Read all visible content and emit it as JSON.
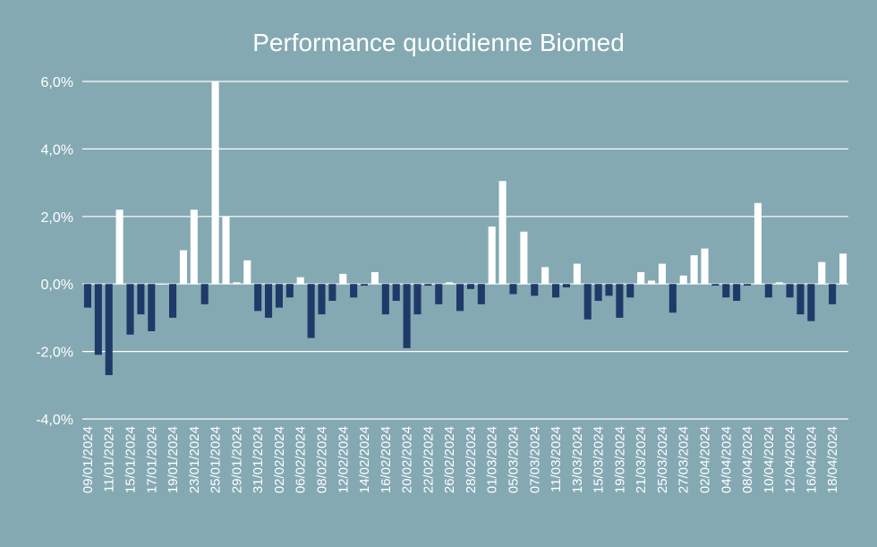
{
  "chart_data": {
    "type": "bar",
    "title": "Performance quotidienne Biomed",
    "xlabel": "",
    "ylabel": "",
    "ylim": [
      -4,
      6
    ],
    "yticks": [
      -4,
      -2,
      0,
      2,
      4,
      6
    ],
    "ytick_labels": [
      "-4,0%",
      "-2,0%",
      "0,0%",
      "2,0%",
      "4,0%",
      "6,0%"
    ],
    "grid": true,
    "colors": {
      "background": "#84a9b3",
      "positive": "#ffffff",
      "negative": "#1f3a68",
      "grid": "#ffffff",
      "text": "#ffffff"
    },
    "categories": [
      "09/01/2024",
      "10/01/2024",
      "11/01/2024",
      "12/01/2024",
      "15/01/2024",
      "16/01/2024",
      "17/01/2024",
      "18/01/2024",
      "19/01/2024",
      "22/01/2024",
      "23/01/2024",
      "24/01/2024",
      "25/01/2024",
      "26/01/2024",
      "29/01/2024",
      "30/01/2024",
      "31/01/2024",
      "01/02/2024",
      "02/02/2024",
      "05/02/2024",
      "06/02/2024",
      "07/02/2024",
      "08/02/2024",
      "09/02/2024",
      "12/02/2024",
      "13/02/2024",
      "14/02/2024",
      "15/02/2024",
      "16/02/2024",
      "19/02/2024",
      "20/02/2024",
      "21/02/2024",
      "22/02/2024",
      "23/02/2024",
      "26/02/2024",
      "27/02/2024",
      "28/02/2024",
      "29/02/2024",
      "01/03/2024",
      "04/03/2024",
      "05/03/2024",
      "06/03/2024",
      "07/03/2024",
      "08/03/2024",
      "11/03/2024",
      "12/03/2024",
      "13/03/2024",
      "14/03/2024",
      "15/03/2024",
      "18/03/2024",
      "19/03/2024",
      "20/03/2024",
      "21/03/2024",
      "22/03/2024",
      "25/03/2024",
      "26/03/2024",
      "27/03/2024",
      "28/03/2024",
      "02/04/2024",
      "03/04/2024",
      "04/04/2024",
      "05/04/2024",
      "08/04/2024",
      "09/04/2024",
      "10/04/2024",
      "11/04/2024",
      "12/04/2024",
      "15/04/2024",
      "16/04/2024",
      "17/04/2024",
      "18/04/2024",
      "19/04/2024"
    ],
    "values": [
      -0.7,
      -2.1,
      -2.7,
      2.2,
      -1.5,
      -0.9,
      -1.4,
      0.0,
      -1.0,
      1.0,
      2.2,
      -0.6,
      6.0,
      2.0,
      0.05,
      0.7,
      -0.8,
      -1.0,
      -0.7,
      -0.4,
      0.2,
      -1.6,
      -0.9,
      -0.5,
      0.3,
      -0.4,
      -0.05,
      0.35,
      -0.9,
      -0.5,
      -1.9,
      -0.9,
      -0.05,
      -0.6,
      0.05,
      -0.8,
      -0.15,
      -0.6,
      1.7,
      3.05,
      -0.3,
      1.55,
      -0.35,
      0.5,
      -0.4,
      -0.1,
      0.6,
      -1.05,
      -0.5,
      -0.35,
      -1.0,
      -0.4,
      0.35,
      0.1,
      0.6,
      -0.85,
      0.25,
      0.85,
      1.05,
      -0.05,
      -0.4,
      -0.5,
      -0.05,
      2.4,
      -0.4,
      0.05,
      -0.4,
      -0.9,
      -1.1,
      0.65,
      -0.6,
      0.9
    ],
    "x_tick_labels": [
      "09/01/2024",
      "11/01/2024",
      "15/01/2024",
      "17/01/2024",
      "19/01/2024",
      "23/01/2024",
      "25/01/2024",
      "29/01/2024",
      "31/01/2024",
      "02/02/2024",
      "06/02/2024",
      "08/02/2024",
      "12/02/2024",
      "14/02/2024",
      "16/02/2024",
      "20/02/2024",
      "22/02/2024",
      "26/02/2024",
      "28/02/2024",
      "01/03/2024",
      "05/03/2024",
      "07/03/2024",
      "11/03/2024",
      "13/03/2024",
      "15/03/2024",
      "19/03/2024",
      "21/03/2024",
      "25/03/2024",
      "27/03/2024",
      "02/04/2024",
      "04/04/2024",
      "08/04/2024",
      "10/04/2024",
      "12/04/2024",
      "16/04/2024",
      "18/04/2024"
    ]
  }
}
